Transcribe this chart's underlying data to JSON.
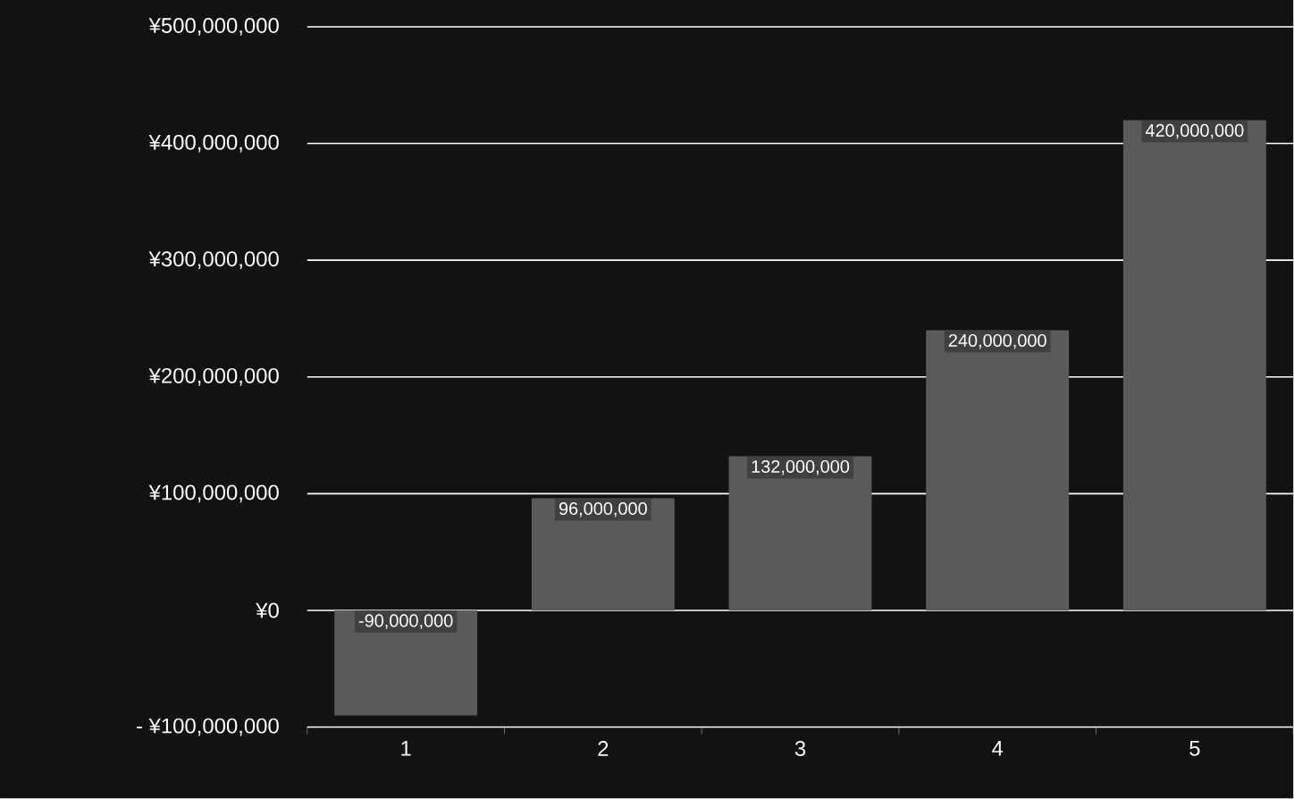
{
  "chart_data": {
    "type": "bar",
    "categories": [
      "1",
      "2",
      "3",
      "4",
      "5"
    ],
    "values": [
      -90000000,
      96000000,
      132000000,
      240000000,
      420000000
    ],
    "value_labels": [
      "-90,000,000",
      "96,000,000",
      "132,000,000",
      "240,000,000",
      "420,000,000"
    ],
    "color": "#5a5a5a",
    "ylim": [
      -100000000,
      500000000
    ],
    "yticks": [
      {
        "value": -100000000,
        "label": "- ¥100,000,000"
      },
      {
        "value": 0,
        "label": "¥0"
      },
      {
        "value": 100000000,
        "label": "¥100,000,000"
      },
      {
        "value": 200000000,
        "label": "¥200,000,000"
      },
      {
        "value": 300000000,
        "label": "¥300,000,000"
      },
      {
        "value": 400000000,
        "label": "¥400,000,000"
      },
      {
        "value": 500000000,
        "label": "¥500,000,000"
      }
    ],
    "grid": "y"
  }
}
